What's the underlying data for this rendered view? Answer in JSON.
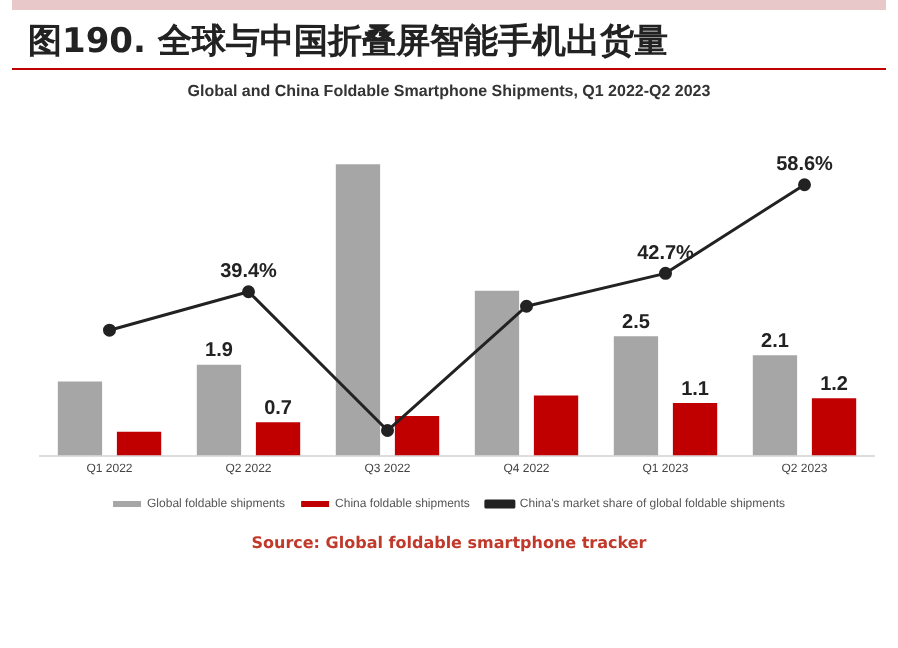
{
  "chart_data": {
    "type": "bar",
    "title": "图190. 全球与中国折叠屏智能手机出货量",
    "subtitle": "Global and China Foldable Smartphone Shipments, Q1 2022-Q2 2023",
    "categories": [
      "Q1 2022",
      "Q2 2022",
      "Q3 2022",
      "Q4 2022",
      "Q1 2023",
      "Q2 2023"
    ],
    "series": [
      {
        "name": "Global foldable shipments",
        "color": "#a6a6a6",
        "values": [
          1.55,
          1.9,
          6.1,
          3.45,
          2.5,
          2.1
        ],
        "value_labels": [
          null,
          "1.9",
          null,
          null,
          "2.5",
          "2.1"
        ]
      },
      {
        "name": "China foldable shipments",
        "color": "#c00000",
        "values": [
          0.5,
          0.7,
          0.83,
          1.26,
          1.1,
          1.2
        ],
        "value_labels": [
          null,
          "0.7",
          null,
          null,
          "1.1",
          "1.2"
        ]
      },
      {
        "name": "China's market share of global foldable shipments",
        "type": "line",
        "axis": "y2",
        "color": "#222222",
        "marker": "circle",
        "values": [
          32.5,
          39.4,
          14.5,
          36.8,
          42.7,
          58.6
        ],
        "value_labels": [
          null,
          "39.4%",
          null,
          null,
          "42.7%",
          "58.6%"
        ]
      }
    ],
    "tick_labels": "x",
    "grid": false,
    "legend": "bottom",
    "annotations": [
      "Source: Global foldable smartphone tracker"
    ]
  }
}
